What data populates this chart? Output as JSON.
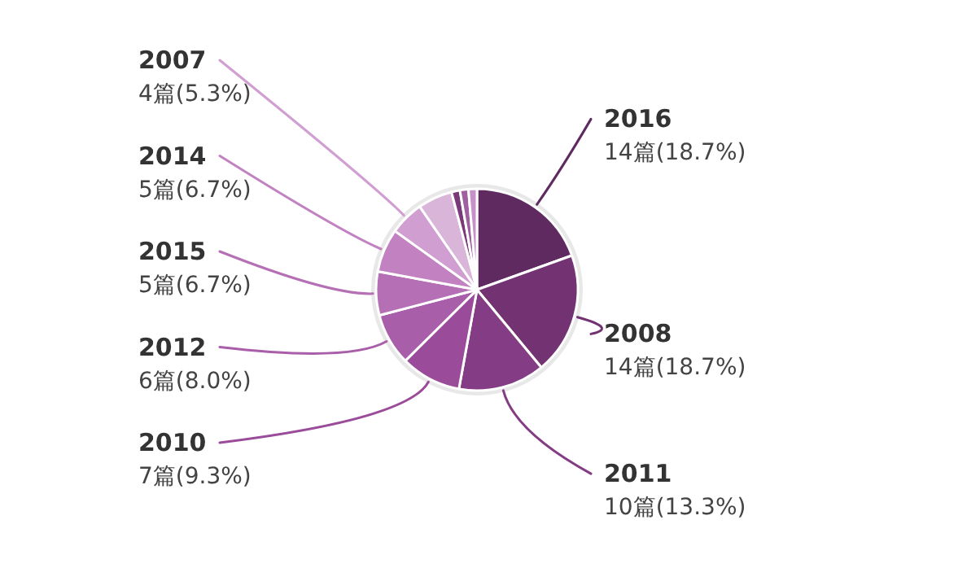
{
  "chart_data": {
    "type": "pie",
    "categories": [
      "2016",
      "2008",
      "2011",
      "2010",
      "2012",
      "2015",
      "2014",
      "2007",
      null,
      null,
      null,
      null
    ],
    "values": [
      18.7,
      18.7,
      13.3,
      9.3,
      8.0,
      6.7,
      6.7,
      5.3,
      5.3,
      1.3,
      1.3,
      1.3
    ],
    "value_labels": [
      "14篇(18.7%)",
      "14篇(18.7%)",
      "10篇(13.3%)",
      "7篇(9.3%)",
      "6篇(8.0%)",
      "5篇(6.7%)",
      "5篇(6.7%)",
      "4篇(5.3%)",
      null,
      null,
      null,
      null
    ],
    "colors": [
      "#5f2a5f",
      "#733373",
      "#843d84",
      "#9a4c9a",
      "#a95ea9",
      "#b56fb5",
      "#c282c2",
      "#d19ed1",
      "#dab5da",
      "#7a3a7a",
      "#a060a0",
      "#c890c8"
    ]
  }
}
